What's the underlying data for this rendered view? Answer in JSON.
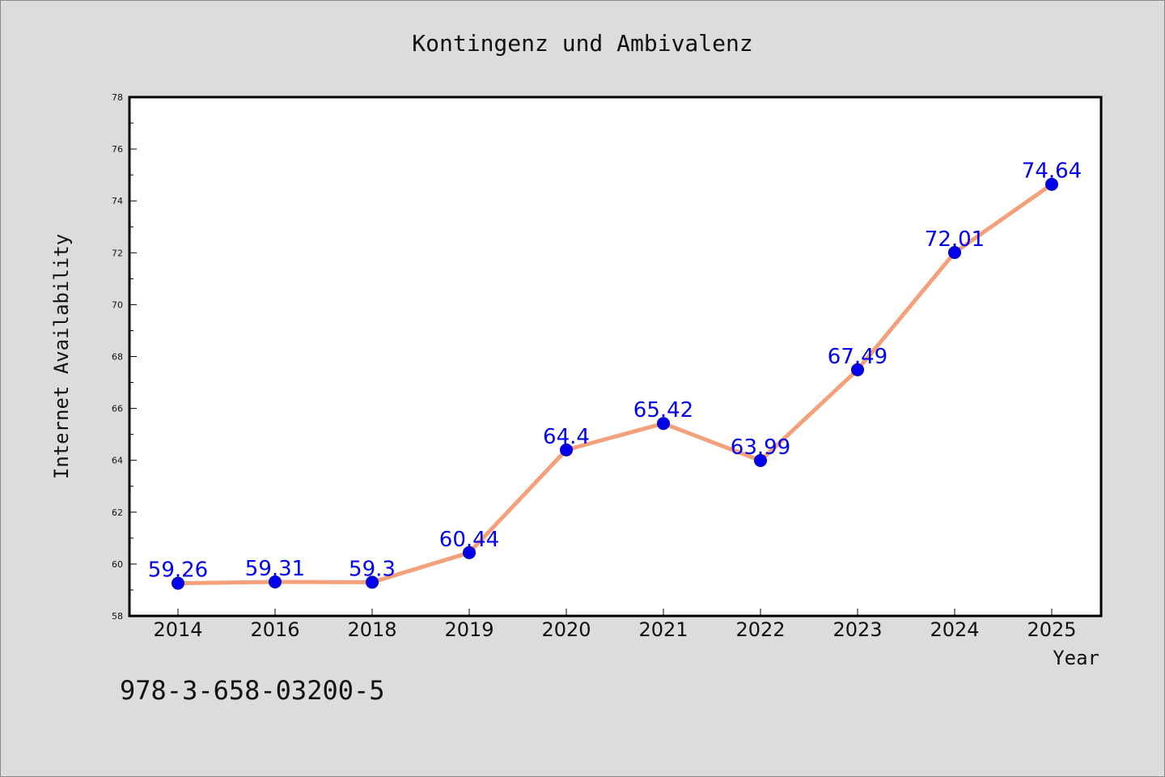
{
  "chart_data": {
    "type": "line",
    "title": "Kontingenz und Ambivalenz",
    "xlabel": "Year",
    "ylabel": "Internet Availability",
    "categories": [
      "2014",
      "2016",
      "2018",
      "2019",
      "2020",
      "2021",
      "2022",
      "2023",
      "2024",
      "2025"
    ],
    "series": [
      {
        "values": [
          59.26,
          59.31,
          59.3,
          60.44,
          64.4,
          65.42,
          63.99,
          67.49,
          72.01,
          74.64
        ],
        "labels": [
          "59.26",
          "59.31",
          "59.3",
          "60.44",
          "64.4",
          "65.42",
          "63.99",
          "67.49",
          "72.01",
          "74.64"
        ],
        "line_color": "#f4a07a",
        "marker_color": "#0000ee"
      }
    ],
    "ylim": [
      58,
      78
    ],
    "yticks": [
      "58",
      "60",
      "62",
      "64",
      "66",
      "68",
      "70",
      "72",
      "74",
      "76",
      "78"
    ],
    "grid": false,
    "legend": "none",
    "plot_background": "#ffffff",
    "page_background": "#dcdcdc"
  },
  "annotation": {
    "isbn": "978-3-658-03200-5"
  }
}
